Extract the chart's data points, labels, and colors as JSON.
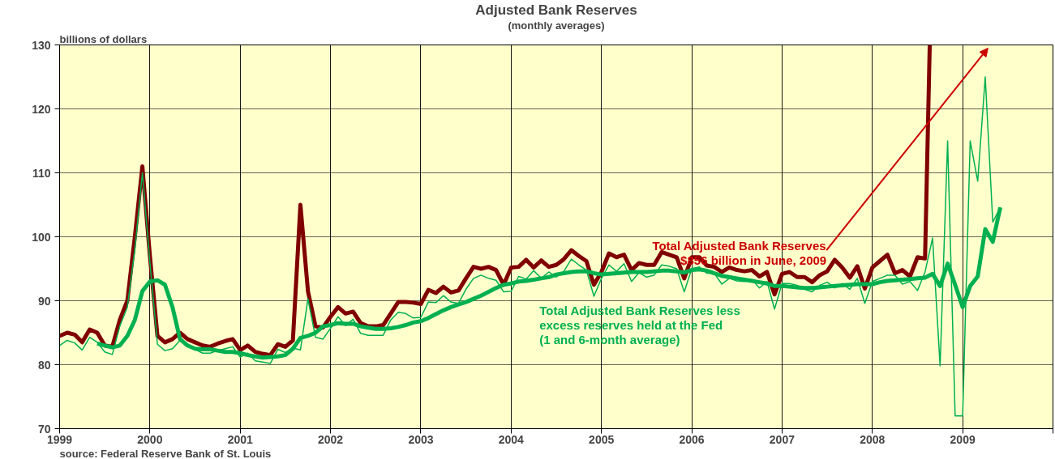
{
  "chart_data": {
    "type": "line",
    "title": "Adjusted Bank Reserves",
    "subtitle": "(monthly averages)",
    "ylabel": "billions of dollars",
    "x": [
      "1999-01",
      "1999-02",
      "1999-03",
      "1999-04",
      "1999-05",
      "1999-06",
      "1999-07",
      "1999-08",
      "1999-09",
      "1999-10",
      "1999-11",
      "1999-12",
      "2000-01",
      "2000-02",
      "2000-03",
      "2000-04",
      "2000-05",
      "2000-06",
      "2000-07",
      "2000-08",
      "2000-09",
      "2000-10",
      "2000-11",
      "2000-12",
      "2001-01",
      "2001-02",
      "2001-03",
      "2001-04",
      "2001-05",
      "2001-06",
      "2001-07",
      "2001-08",
      "2001-09",
      "2001-10",
      "2001-11",
      "2001-12",
      "2002-01",
      "2002-02",
      "2002-03",
      "2002-04",
      "2002-05",
      "2002-06",
      "2002-07",
      "2002-08",
      "2002-09",
      "2002-10",
      "2002-11",
      "2002-12",
      "2003-01",
      "2003-02",
      "2003-03",
      "2003-04",
      "2003-05",
      "2003-06",
      "2003-07",
      "2003-08",
      "2003-09",
      "2003-10",
      "2003-11",
      "2003-12",
      "2004-01",
      "2004-02",
      "2004-03",
      "2004-04",
      "2004-05",
      "2004-06",
      "2004-07",
      "2004-08",
      "2004-09",
      "2004-10",
      "2004-11",
      "2004-12",
      "2005-01",
      "2005-02",
      "2005-03",
      "2005-04",
      "2005-05",
      "2005-06",
      "2005-07",
      "2005-08",
      "2005-09",
      "2005-10",
      "2005-11",
      "2005-12",
      "2006-01",
      "2006-02",
      "2006-03",
      "2006-04",
      "2006-05",
      "2006-06",
      "2006-07",
      "2006-08",
      "2006-09",
      "2006-10",
      "2006-11",
      "2006-12",
      "2007-01",
      "2007-02",
      "2007-03",
      "2007-04",
      "2007-05",
      "2007-06",
      "2007-07",
      "2007-08",
      "2007-09",
      "2007-10",
      "2007-11",
      "2007-12",
      "2008-01",
      "2008-02",
      "2008-03",
      "2008-04",
      "2008-05",
      "2008-06",
      "2008-07",
      "2008-08",
      "2008-09",
      "2008-10",
      "2008-11",
      "2008-12",
      "2009-01",
      "2009-02",
      "2009-03",
      "2009-04",
      "2009-05",
      "2009-06"
    ],
    "series": [
      {
        "color": "#00b050",
        "values": [
          83,
          83.8,
          83.4,
          82.3,
          84.3,
          83.5,
          82,
          81.6,
          86,
          89,
          98,
          110,
          96,
          83.2,
          82.2,
          82.5,
          83.8,
          82.8,
          82.4,
          81.8,
          81.8,
          82.2,
          82.5,
          82.8,
          81.2,
          81.8,
          80.6,
          80.4,
          80.2,
          82.4,
          81.9,
          82.6,
          82.3,
          90.3,
          84.3,
          84,
          85.7,
          87.5,
          86.1,
          87.1,
          84.9,
          84.6,
          84.6,
          84.6,
          87,
          88.2,
          88,
          87.3,
          87.4,
          89.8,
          89.7,
          90.8,
          89.8,
          89.6,
          91.8,
          93.5,
          94,
          93.5,
          93.2,
          91.4,
          91.5,
          93.8,
          93.4,
          94.7,
          93.5,
          94.5,
          93.7,
          94.6,
          96.5,
          95.6,
          94.8,
          90.7,
          93.5,
          95.6,
          94.6,
          95.8,
          93,
          94.4,
          93.7,
          94,
          95.6,
          95.4,
          95,
          91.4,
          95,
          95.3,
          94.3,
          94.3,
          92.6,
          93.5,
          93.1,
          93,
          93.3,
          92,
          93,
          88.7,
          92.7,
          92.7,
          92.4,
          91.8,
          91.4,
          92.4,
          92.9,
          92,
          92.7,
          91.8,
          93.5,
          89.6,
          93,
          93.5,
          94,
          94,
          92.6,
          93,
          91.6,
          94.5,
          99.8,
          79.8,
          115,
          72,
          72,
          115,
          108.7,
          125,
          102.3,
          104.6
        ]
      },
      {
        "color": "#00b050",
        "values": [
          null,
          null,
          null,
          null,
          null,
          83.3,
          83,
          82.7,
          83,
          84.5,
          87,
          91.5,
          93,
          93.2,
          92.5,
          89,
          84,
          83,
          82.5,
          82.4,
          82.4,
          82.2,
          82,
          82,
          81.8,
          81.5,
          81.3,
          81.1,
          81.2,
          81.3,
          81.5,
          82.5,
          84.2,
          84.5,
          85,
          86,
          86.2,
          86.5,
          86.4,
          86.4,
          86,
          85.8,
          85.6,
          85.6,
          85.7,
          85.9,
          86.2,
          86.6,
          86.8,
          87.3,
          87.9,
          88.5,
          89,
          89.4,
          89.8,
          90.3,
          90.8,
          91.4,
          92,
          92.5,
          92.7,
          93,
          93.1,
          93.3,
          93.5,
          93.7,
          94.1,
          94.3,
          94.5,
          94.6,
          94.6,
          94.3,
          94.1,
          94.2,
          94.3,
          94.4,
          94.5,
          94.5,
          94.5,
          94.6,
          94.7,
          94.7,
          94.6,
          94.4,
          94.8,
          94.9,
          94.7,
          94.3,
          93.9,
          93.7,
          93.5,
          93.3,
          93.1,
          92.9,
          92.7,
          92.3,
          92.3,
          92.2,
          92.1,
          92,
          92,
          92.1,
          92.2,
          92.3,
          92.4,
          92.5,
          92.6,
          92.6,
          92.6,
          92.9,
          93.1,
          93.2,
          93.3,
          93.4,
          93.5,
          93.6,
          94.2,
          92.3,
          95.8,
          92.5,
          89,
          92.3,
          93.8,
          101.2,
          99.2,
          104.6
        ]
      },
      {
        "color": "#800000",
        "x": [
          "1999-01",
          "1999-02",
          "1999-03",
          "1999-04",
          "1999-05",
          "1999-06",
          "1999-07",
          "1999-08",
          "1999-09",
          "1999-10",
          "1999-11",
          "1999-12",
          "2000-01",
          "2000-02",
          "2000-03",
          "2000-04",
          "2000-05",
          "2000-06",
          "2000-07",
          "2000-08",
          "2000-09",
          "2000-10",
          "2000-11",
          "2000-12",
          "2001-01",
          "2001-02",
          "2001-03",
          "2001-04",
          "2001-05",
          "2001-06",
          "2001-07",
          "2001-08",
          "2001-09",
          "2001-10",
          "2001-11",
          "2001-12",
          "2002-01",
          "2002-02",
          "2002-03",
          "2002-04",
          "2002-05",
          "2002-06",
          "2002-07",
          "2002-08",
          "2002-09",
          "2002-10",
          "2002-11",
          "2002-12",
          "2003-01",
          "2003-02",
          "2003-03",
          "2003-04",
          "2003-05",
          "2003-06",
          "2003-07",
          "2003-08",
          "2003-09",
          "2003-10",
          "2003-11",
          "2003-12",
          "2004-01",
          "2004-02",
          "2004-03",
          "2004-04",
          "2004-05",
          "2004-06",
          "2004-07",
          "2004-08",
          "2004-09",
          "2004-10",
          "2004-11",
          "2004-12",
          "2005-01",
          "2005-02",
          "2005-03",
          "2005-04",
          "2005-05",
          "2005-06",
          "2005-07",
          "2005-08",
          "2005-09",
          "2005-10",
          "2005-11",
          "2005-12",
          "2006-01",
          "2006-02",
          "2006-03",
          "2006-04",
          "2006-05",
          "2006-06",
          "2006-07",
          "2006-08",
          "2006-09",
          "2006-10",
          "2006-11",
          "2006-12",
          "2007-01",
          "2007-02",
          "2007-03",
          "2007-04",
          "2007-05",
          "2007-06",
          "2007-07",
          "2007-08",
          "2007-09",
          "2007-10",
          "2007-11",
          "2007-12",
          "2008-01",
          "2008-02",
          "2008-03",
          "2008-04",
          "2008-05",
          "2008-06",
          "2008-07",
          "2008-08",
          "2008-08-20"
        ],
        "values": [
          84.5,
          85,
          84.7,
          83.5,
          85.5,
          85,
          83,
          82.8,
          87,
          90,
          100,
          111,
          97,
          84.5,
          83.5,
          84,
          85,
          84,
          83.5,
          83,
          82.8,
          83.3,
          83.7,
          84,
          82.3,
          83,
          82,
          81.7,
          81.5,
          83.2,
          82.8,
          83.8,
          105,
          91.5,
          86,
          85.8,
          87.5,
          89,
          88,
          88.3,
          86.5,
          86,
          86,
          86.2,
          88,
          89.8,
          89.8,
          89.7,
          89.5,
          91.7,
          91.2,
          92.2,
          91.3,
          91.6,
          93.5,
          95.3,
          95,
          95.3,
          94.8,
          92.5,
          95.2,
          95.3,
          96.4,
          95.2,
          96.3,
          95.3,
          95.6,
          96.5,
          97.9,
          97,
          96.2,
          92.5,
          94.5,
          97.4,
          96.8,
          97.2,
          94.8,
          95.9,
          95.6,
          95.6,
          97.6,
          97.2,
          96.8,
          93.5,
          96.8,
          96.8,
          95.5,
          95.3,
          94.5,
          95.2,
          94.8,
          94.6,
          94.8,
          93.8,
          94.5,
          91,
          94.2,
          94.5,
          93.7,
          93.7,
          92.9,
          94,
          94.6,
          96.4,
          95.2,
          93.6,
          95.4,
          91.9,
          95.2,
          96.2,
          97.2,
          94.3,
          94.8,
          93.8,
          96.8,
          96.6,
          130
        ]
      }
    ],
    "xlim": [
      "1999-01",
      "2010-01"
    ],
    "xticks": [
      "1999",
      "2000",
      "2001",
      "2002",
      "2003",
      "2004",
      "2005",
      "2006",
      "2007",
      "2008",
      "2009"
    ],
    "ylim": [
      70,
      130
    ],
    "yticks": [
      70,
      80,
      90,
      100,
      110,
      120,
      130
    ],
    "grid": true,
    "annotations": [
      "Total Adjusted Bank Reserves\n$856 billion in June, 2009",
      "Total Adjusted Bank Reserves less\nexcess reserves held at the Fed\n(1 and 6-month average)",
      "source: Federal Reserve Bank of St. Louis"
    ]
  }
}
